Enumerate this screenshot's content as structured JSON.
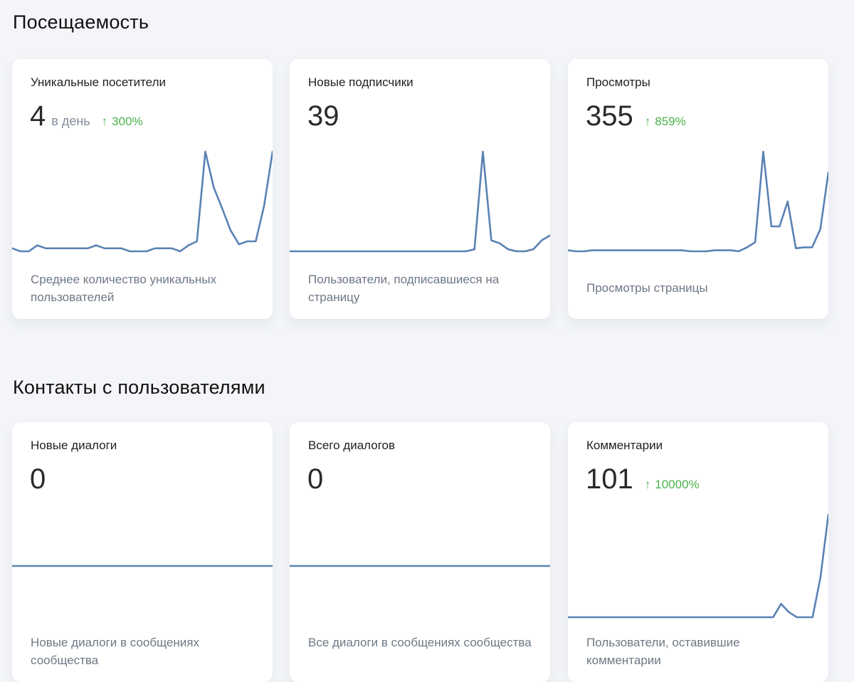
{
  "sections": [
    {
      "title": "Посещаемость",
      "cards": [
        {
          "title": "Уникальные посетители",
          "value": "4",
          "unit": "в день",
          "change": "300%",
          "change_direction": "up",
          "description": "Среднее количество уникальных пользователей",
          "sparkline": [
            0.03,
            0,
            0,
            0.06,
            0.03,
            0.03,
            0.03,
            0.03,
            0.03,
            0.03,
            0.06,
            0.03,
            0.03,
            0.03,
            0,
            0,
            0,
            0.03,
            0.03,
            0.03,
            0,
            0.06,
            0.1,
            1,
            0.64,
            0.43,
            0.21,
            0.07,
            0.1,
            0.1,
            0.46,
            1
          ]
        },
        {
          "title": "Новые подписчики",
          "value": "39",
          "unit": "",
          "change": "",
          "change_direction": "",
          "description": "Пользователи, подписавшиеся на страницу",
          "sparkline": [
            0,
            0,
            0,
            0,
            0,
            0,
            0,
            0,
            0,
            0,
            0,
            0,
            0,
            0,
            0,
            0,
            0,
            0,
            0,
            0,
            0,
            0,
            0.02,
            1,
            0.11,
            0.08,
            0.02,
            0,
            0,
            0.02,
            0.11,
            0.16
          ]
        },
        {
          "title": "Просмотры",
          "value": "355",
          "unit": "",
          "change": "859%",
          "change_direction": "up",
          "description": "Просмотры страницы",
          "sparkline": [
            0.01,
            0,
            0,
            0.01,
            0.01,
            0.01,
            0.01,
            0.01,
            0.01,
            0.01,
            0.01,
            0.01,
            0.01,
            0.01,
            0.01,
            0,
            0,
            0,
            0.01,
            0.01,
            0.01,
            0,
            0.04,
            0.09,
            1,
            0.25,
            0.25,
            0.5,
            0.03,
            0.04,
            0.04,
            0.22,
            0.79
          ]
        }
      ]
    },
    {
      "title": "Контакты с пользователями",
      "cards": [
        {
          "title": "Новые диалоги",
          "value": "0",
          "unit": "",
          "change": "",
          "change_direction": "",
          "description": "Новые диалоги в сообщениях сообщества",
          "sparkline_flat": true,
          "sparkline": [
            0,
            0,
            0,
            0,
            0,
            0,
            0,
            0,
            0,
            0,
            0,
            0,
            0,
            0,
            0,
            0,
            0,
            0,
            0,
            0,
            0,
            0,
            0,
            0,
            0,
            0,
            0,
            0,
            0,
            0,
            0,
            0
          ]
        },
        {
          "title": "Всего диалогов",
          "value": "0",
          "unit": "",
          "change": "",
          "change_direction": "",
          "description": "Все диалоги в сообщениях сообщества",
          "sparkline_flat": true,
          "sparkline": [
            0,
            0,
            0,
            0,
            0,
            0,
            0,
            0,
            0,
            0,
            0,
            0,
            0,
            0,
            0,
            0,
            0,
            0,
            0,
            0,
            0,
            0,
            0,
            0,
            0,
            0,
            0,
            0,
            0,
            0,
            0,
            0
          ]
        },
        {
          "title": "Комментарии",
          "value": "101",
          "unit": "",
          "change": "10000%",
          "change_direction": "up",
          "description": "Пользователи, оставившие комментарии",
          "sparkline": [
            0,
            0,
            0,
            0,
            0,
            0,
            0,
            0,
            0,
            0,
            0,
            0,
            0,
            0,
            0,
            0,
            0,
            0,
            0,
            0,
            0,
            0,
            0,
            0,
            0,
            0,
            0,
            0.13,
            0.05,
            0,
            0,
            0,
            0.39,
            1
          ]
        }
      ]
    }
  ],
  "colors": {
    "background": "#f3f5f8",
    "card": "#ffffff",
    "sparkline": "#5a82b3",
    "positive": "#4bb34b",
    "muted": "#818c99",
    "arrow_icon": "arrow-up-icon"
  }
}
